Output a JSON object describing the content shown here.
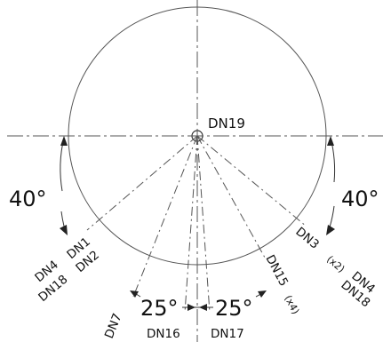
{
  "center_label": "DN19",
  "angles": {
    "left_big": "40°",
    "right_big": "40°",
    "bottom_left": "25°",
    "bottom_right": "25°"
  },
  "ray_labels": {
    "dn1": "DN1",
    "dn2": "DN2",
    "dn4_left": "DN4",
    "dn18_left": "DN18",
    "dn7": "DN7",
    "dn16": "DN16",
    "dn17": "DN17",
    "dn15": "DN15",
    "x4": "(x4)",
    "dn3": "DN3",
    "x2": "(x2)",
    "dn4_right": "DN4",
    "dn18_right": "DN18"
  },
  "colors": {
    "line": "#444444",
    "text": "#111111"
  }
}
